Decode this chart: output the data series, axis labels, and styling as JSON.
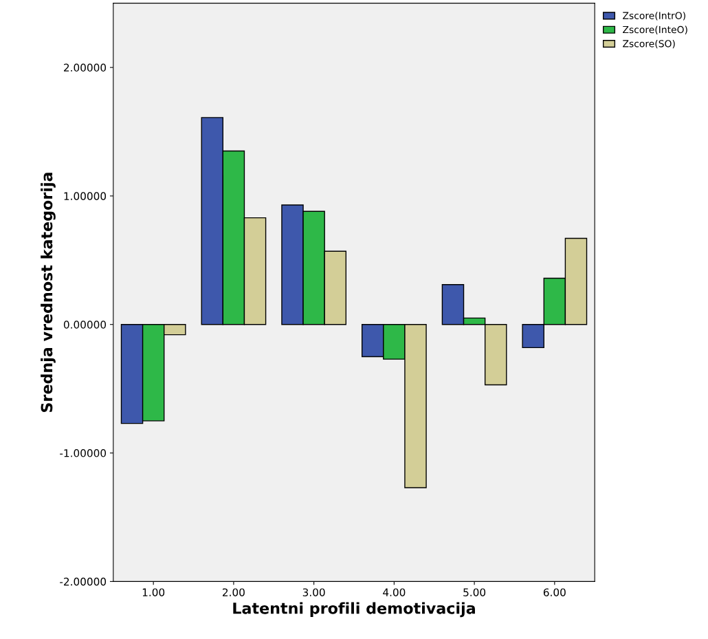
{
  "chart_data": {
    "type": "bar",
    "xlabel": "Latentni profili demotivacija",
    "ylabel": "Srednja vrednost kategorija",
    "categories": [
      "1.00",
      "2.00",
      "3.00",
      "4.00",
      "5.00",
      "6.00"
    ],
    "series": [
      {
        "name": "Zscore(IntrO)",
        "color": "#3e58ac",
        "values": [
          -0.77,
          1.61,
          0.93,
          -0.25,
          0.31,
          -0.18
        ]
      },
      {
        "name": "Zscore(InteO)",
        "color": "#2eb848",
        "values": [
          -0.75,
          1.35,
          0.88,
          -0.27,
          0.05,
          0.36
        ]
      },
      {
        "name": "Zscore(SO)",
        "color": "#d3ce97",
        "values": [
          -0.08,
          0.83,
          0.57,
          -1.27,
          -0.47,
          0.67
        ]
      }
    ],
    "ylim": [
      -2,
      2.5
    ],
    "yticks": [
      {
        "value": -2,
        "label": "-2.00000"
      },
      {
        "value": -1,
        "label": "-1.00000"
      },
      {
        "value": 0,
        "label": "0.00000"
      },
      {
        "value": 1,
        "label": "1.00000"
      },
      {
        "value": 2,
        "label": "2.00000"
      }
    ],
    "grid": false,
    "legend": "top right"
  }
}
